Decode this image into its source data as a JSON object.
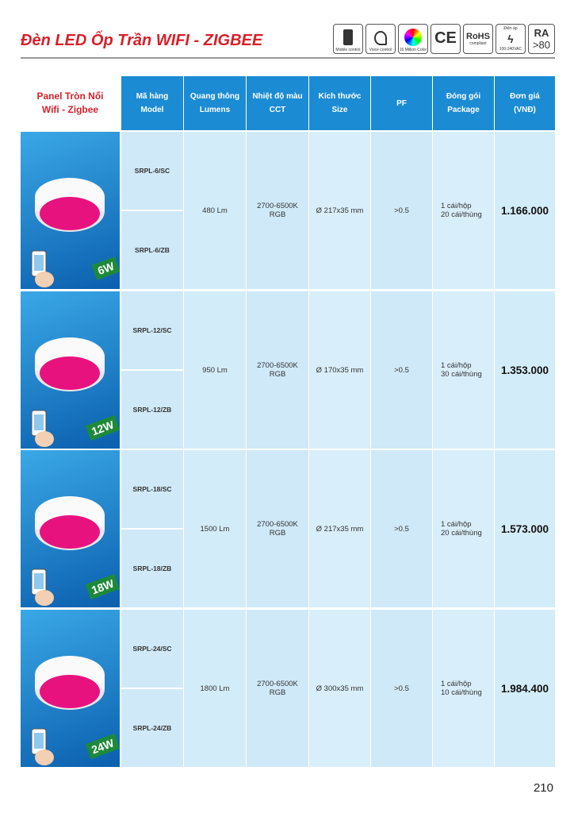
{
  "header": {
    "title": "Đèn LED Ốp Trần WIFI - ZIGBEE",
    "icons": {
      "mobile": "Mobile control",
      "voice": "Voice control",
      "color": "16 Million Color",
      "ce": "CE",
      "rohs": "RoHS",
      "rohs_sub": "compliant",
      "voltage_title": "Điện áp",
      "voltage": "100-240VAC",
      "ra": "RA",
      "ra_value": ">80"
    }
  },
  "table": {
    "product_group": [
      "Panel Tròn Nổi",
      "Wifi - Zigbee"
    ],
    "columns": [
      [
        "Mã hàng",
        "Model"
      ],
      [
        "Quang thông",
        "Lumens"
      ],
      [
        "Nhiệt độ màu",
        "CCT"
      ],
      [
        "Kích thước",
        "Size"
      ],
      [
        "PF"
      ],
      [
        "Đóng gói",
        "Package"
      ],
      [
        "Đơn giá",
        "(VNĐ)"
      ]
    ],
    "rows": [
      {
        "watt": "6W",
        "models": [
          "SRPL-6/SC",
          "SRPL-6/ZB"
        ],
        "lumens": "480 Lm",
        "cct": [
          "2700-6500K",
          "RGB"
        ],
        "size": "Ø 217x35 mm",
        "pf": ">0.5",
        "package": [
          "1 cái/hộp",
          "20 cái/thùng"
        ],
        "price": "1.166.000"
      },
      {
        "watt": "12W",
        "models": [
          "SRPL-12/SC",
          "SRPL-12/ZB"
        ],
        "lumens": "950 Lm",
        "cct": [
          "2700-6500K",
          "RGB"
        ],
        "size": "Ø 170x35 mm",
        "pf": ">0.5",
        "package": [
          "1 cái/hộp",
          "30 cái/thùng"
        ],
        "price": "1.353.000"
      },
      {
        "watt": "18W",
        "models": [
          "SRPL-18/SC",
          "SRPL-18/ZB"
        ],
        "lumens": "1500 Lm",
        "cct": [
          "2700-6500K",
          "RGB"
        ],
        "size": "Ø 217x35 mm",
        "pf": ">0.5",
        "package": [
          "1 cái/hộp",
          "20 cái/thùng"
        ],
        "price": "1.573.000"
      },
      {
        "watt": "24W",
        "models": [
          "SRPL-24/SC",
          "SRPL-24/ZB"
        ],
        "lumens": "1800 Lm",
        "cct": [
          "2700-6500K",
          "RGB"
        ],
        "size": "Ø 300x35 mm",
        "pf": ">0.5",
        "package": [
          "1 cái/hộp",
          "10 cái/thùng"
        ],
        "price": "1.984.400"
      }
    ]
  },
  "footer": {
    "page_number": "210"
  }
}
